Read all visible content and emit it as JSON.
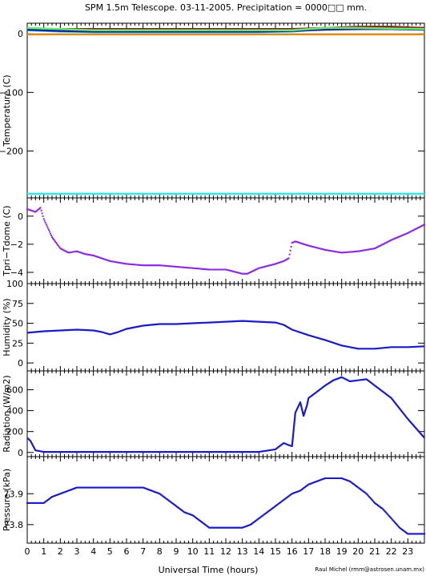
{
  "title": "SPM 1.5m Telescope. 03-11-2005. Precipitation = 0000□□ mm.",
  "xlabel": "Universal Time (hours)",
  "credit": "Raul Michel (rmm@astrosen.unam.mx)",
  "x_ticks": [
    "0",
    "1",
    "2",
    "3",
    "4",
    "5",
    "6",
    "7",
    "8",
    "9",
    "10",
    "11",
    "12",
    "13",
    "14",
    "15",
    "16",
    "17",
    "18",
    "19",
    "20",
    "21",
    "22",
    "23"
  ],
  "chart_data": [
    {
      "type": "line",
      "ylabel": "Temperature (C)",
      "ylim": [
        -280,
        18
      ],
      "xlim": [
        0,
        24
      ],
      "yticks": [
        0,
        -100,
        -200
      ],
      "ytick_labels": [
        "0",
        "−100",
        "−200"
      ],
      "series": [
        {
          "color": "#8b1a1a",
          "x": [
            0,
            2,
            4,
            6,
            8,
            10,
            12,
            14,
            16,
            18,
            20,
            22,
            24
          ],
          "y": [
            8,
            8,
            8,
            8,
            8,
            8,
            8,
            8,
            8,
            10,
            12,
            12,
            10
          ]
        },
        {
          "color": "#00bfff",
          "x": [
            0,
            2,
            4,
            6,
            8,
            10,
            12,
            14,
            16,
            17,
            18,
            20,
            22,
            24
          ],
          "y": [
            6,
            4,
            3,
            3,
            3,
            3,
            3,
            3,
            4,
            6,
            8,
            9,
            8,
            7
          ]
        },
        {
          "color": "#009933",
          "x": [
            0,
            2,
            4,
            6,
            8,
            10,
            12,
            14,
            16,
            18,
            20,
            22,
            24
          ],
          "y": [
            9,
            7,
            5,
            5,
            5,
            5,
            5,
            5,
            6,
            8,
            9,
            9,
            8
          ]
        },
        {
          "color": "#1a1aa0",
          "x": [
            0,
            2,
            4,
            6,
            8,
            10,
            12,
            14,
            16,
            18,
            20,
            22,
            24
          ],
          "y": [
            7,
            5,
            4,
            4,
            4,
            4,
            4,
            4,
            5,
            7,
            8,
            8,
            7
          ]
        },
        {
          "color": "#66ee66",
          "x": [
            0,
            2,
            4,
            6,
            8,
            10,
            12,
            14,
            16,
            17,
            18,
            20,
            22,
            24
          ],
          "y": [
            10,
            8,
            6,
            6,
            6,
            6,
            6,
            6,
            6,
            8,
            10,
            10,
            9,
            8
          ]
        },
        {
          "color": "#d98c1a",
          "x": [
            0,
            24
          ],
          "y": [
            -1,
            -1
          ]
        },
        {
          "color": "#33e6e6",
          "x": [
            0,
            24
          ],
          "y": [
            -273,
            -273
          ]
        }
      ]
    },
    {
      "type": "scatter",
      "ylabel": "Tpri−Tdome (C)",
      "ylim": [
        -4.8,
        1.3
      ],
      "xlim": [
        0,
        24
      ],
      "yticks": [
        0,
        -2,
        -4
      ],
      "ytick_labels": [
        "0",
        "−2",
        "−4"
      ],
      "series": [
        {
          "color": "#8a2be2",
          "x": [
            0,
            0.5,
            0.8,
            1,
            1.5,
            2,
            2.5,
            3,
            3.5,
            4,
            5,
            6,
            7,
            8,
            9,
            10,
            11,
            12,
            13,
            13.3,
            14,
            15,
            15.5,
            15.8,
            16,
            16.2,
            17,
            18,
            19,
            20,
            21,
            22,
            23,
            24
          ],
          "y": [
            0.5,
            0.3,
            0.6,
            -0.2,
            -1.5,
            -2.3,
            -2.6,
            -2.5,
            -2.7,
            -2.8,
            -3.2,
            -3.4,
            -3.5,
            -3.5,
            -3.6,
            -3.7,
            -3.8,
            -3.8,
            -4.1,
            -4.1,
            -3.7,
            -3.4,
            -3.2,
            -3.0,
            -1.9,
            -1.8,
            -2.1,
            -2.4,
            -2.6,
            -2.5,
            -2.3,
            -1.7,
            -1.2,
            -0.6
          ]
        }
      ]
    },
    {
      "type": "line",
      "ylabel": "Humidity (%)",
      "ylim": [
        -10,
        100
      ],
      "xlim": [
        0,
        24
      ],
      "yticks": [
        0,
        25,
        50,
        75,
        100
      ],
      "ytick_labels": [
        "0",
        "25",
        "50",
        "75",
        "100"
      ],
      "series": [
        {
          "color": "#1a1ac8",
          "x": [
            0,
            1,
            2,
            3,
            4,
            4.5,
            5,
            5.5,
            6,
            7,
            8,
            9,
            10,
            11,
            12,
            13,
            14,
            15,
            15.5,
            16,
            17,
            18,
            19,
            20,
            21,
            22,
            23,
            24
          ],
          "y": [
            38,
            40,
            41,
            42,
            41,
            39,
            36,
            39,
            43,
            47,
            49,
            49,
            50,
            51,
            52,
            53,
            52,
            51,
            48,
            42,
            35,
            29,
            22,
            18,
            18,
            20,
            20,
            21
          ]
        }
      ]
    },
    {
      "type": "line",
      "ylabel": "Radiation (W/m2)",
      "ylim": [
        -40,
        780
      ],
      "xlim": [
        0,
        24
      ],
      "yticks": [
        0,
        200,
        400,
        600
      ],
      "ytick_labels": [
        "0",
        "200",
        "400",
        "600"
      ],
      "series": [
        {
          "color": "#1a1ac8",
          "x": [
            0,
            0.2,
            0.5,
            1,
            5,
            10,
            14,
            15,
            15.5,
            15.8,
            16,
            16.2,
            16.5,
            16.7,
            16.9,
            17,
            17.5,
            18,
            18.5,
            19,
            19.5,
            20,
            20.5,
            21,
            22,
            23,
            24
          ],
          "y": [
            140,
            110,
            20,
            5,
            5,
            5,
            5,
            30,
            90,
            70,
            60,
            380,
            480,
            350,
            450,
            520,
            580,
            640,
            690,
            720,
            680,
            690,
            700,
            640,
            520,
            320,
            140
          ]
        }
      ]
    },
    {
      "type": "scatter",
      "ylabel": "Pressure (kPa)",
      "ylim": [
        73.74,
        74.02
      ],
      "xlim": [
        0,
        24
      ],
      "yticks": [
        73.8,
        73.9
      ],
      "ytick_labels": [
        "73.8",
        "73.9"
      ],
      "series": [
        {
          "color": "#1a1ac8",
          "x": [
            0,
            1,
            1.5,
            2,
            2.5,
            3,
            4,
            5,
            6,
            7,
            7.5,
            8,
            8.5,
            9,
            9.5,
            10,
            10.5,
            11,
            12,
            13,
            13.5,
            14,
            14.5,
            15,
            15.5,
            16,
            16.5,
            17,
            17.5,
            18,
            18.5,
            19,
            19.5,
            20,
            20.5,
            21,
            21.5,
            22,
            22.5,
            23,
            24
          ],
          "y": [
            73.87,
            73.87,
            73.89,
            73.9,
            73.91,
            73.92,
            73.92,
            73.92,
            73.92,
            73.92,
            73.91,
            73.9,
            73.88,
            73.86,
            73.84,
            73.83,
            73.81,
            73.79,
            73.79,
            73.79,
            73.8,
            73.82,
            73.84,
            73.86,
            73.88,
            73.9,
            73.91,
            73.93,
            73.94,
            73.95,
            73.95,
            73.95,
            73.94,
            73.92,
            73.9,
            73.87,
            73.85,
            73.82,
            73.79,
            73.77,
            73.77
          ]
        }
      ]
    }
  ]
}
